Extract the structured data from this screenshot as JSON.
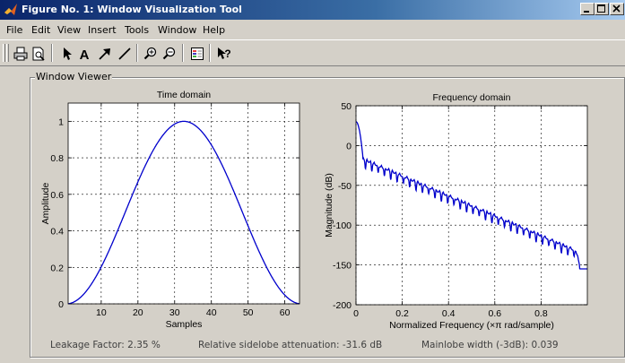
{
  "window": {
    "title": "Figure No. 1: Window Visualization Tool",
    "controls": [
      "minimize",
      "maximize",
      "close"
    ]
  },
  "menu": [
    "File",
    "Edit",
    "View",
    "Insert",
    "Tools",
    "Window",
    "Help"
  ],
  "toolbar": {
    "buttons": [
      "print-icon",
      "print-preview-icon",
      "select-arrow-icon",
      "text-icon",
      "arrow-icon",
      "line-icon",
      "zoom-in-icon",
      "zoom-out-icon",
      "legend-icon",
      "context-help-icon"
    ],
    "text_tool_glyph": "A",
    "help_glyph": "?"
  },
  "panel": {
    "label": "Window Viewer"
  },
  "chart_data": [
    {
      "type": "line",
      "title": "Time domain",
      "xlabel": "Samples",
      "ylabel": "Amplitude",
      "xlim": [
        1,
        64
      ],
      "ylim": [
        0,
        1.1
      ],
      "xticks": [
        10,
        20,
        30,
        40,
        50,
        60
      ],
      "yticks": [
        0,
        0.2,
        0.4,
        0.6,
        0.8,
        1
      ],
      "grid": true,
      "line_color": "#0000cc",
      "series": [
        {
          "window": "hann",
          "length": 64,
          "peak": 1
        }
      ]
    },
    {
      "type": "line",
      "title": "Frequency domain",
      "xlabel": "Normalized Frequency  (×π rad/sample)",
      "ylabel": "Magnitude (dB)",
      "xlim": [
        0,
        1
      ],
      "ylim": [
        -200,
        50
      ],
      "xticks": [
        0,
        0.2,
        0.4,
        0.6,
        0.8
      ],
      "yticks": [
        -200,
        -150,
        -100,
        -50,
        0,
        50
      ],
      "grid": true,
      "line_color": "#0000cc",
      "series": [
        {
          "peak_db": 30,
          "end_db": -155
        }
      ]
    }
  ],
  "status": {
    "leakage": "Leakage Factor: 2.35 %",
    "sidelobe": "Relative sidelobe attenuation: -31.6 dB",
    "mainlobe": "Mainlobe width (-3dB): 0.039"
  }
}
